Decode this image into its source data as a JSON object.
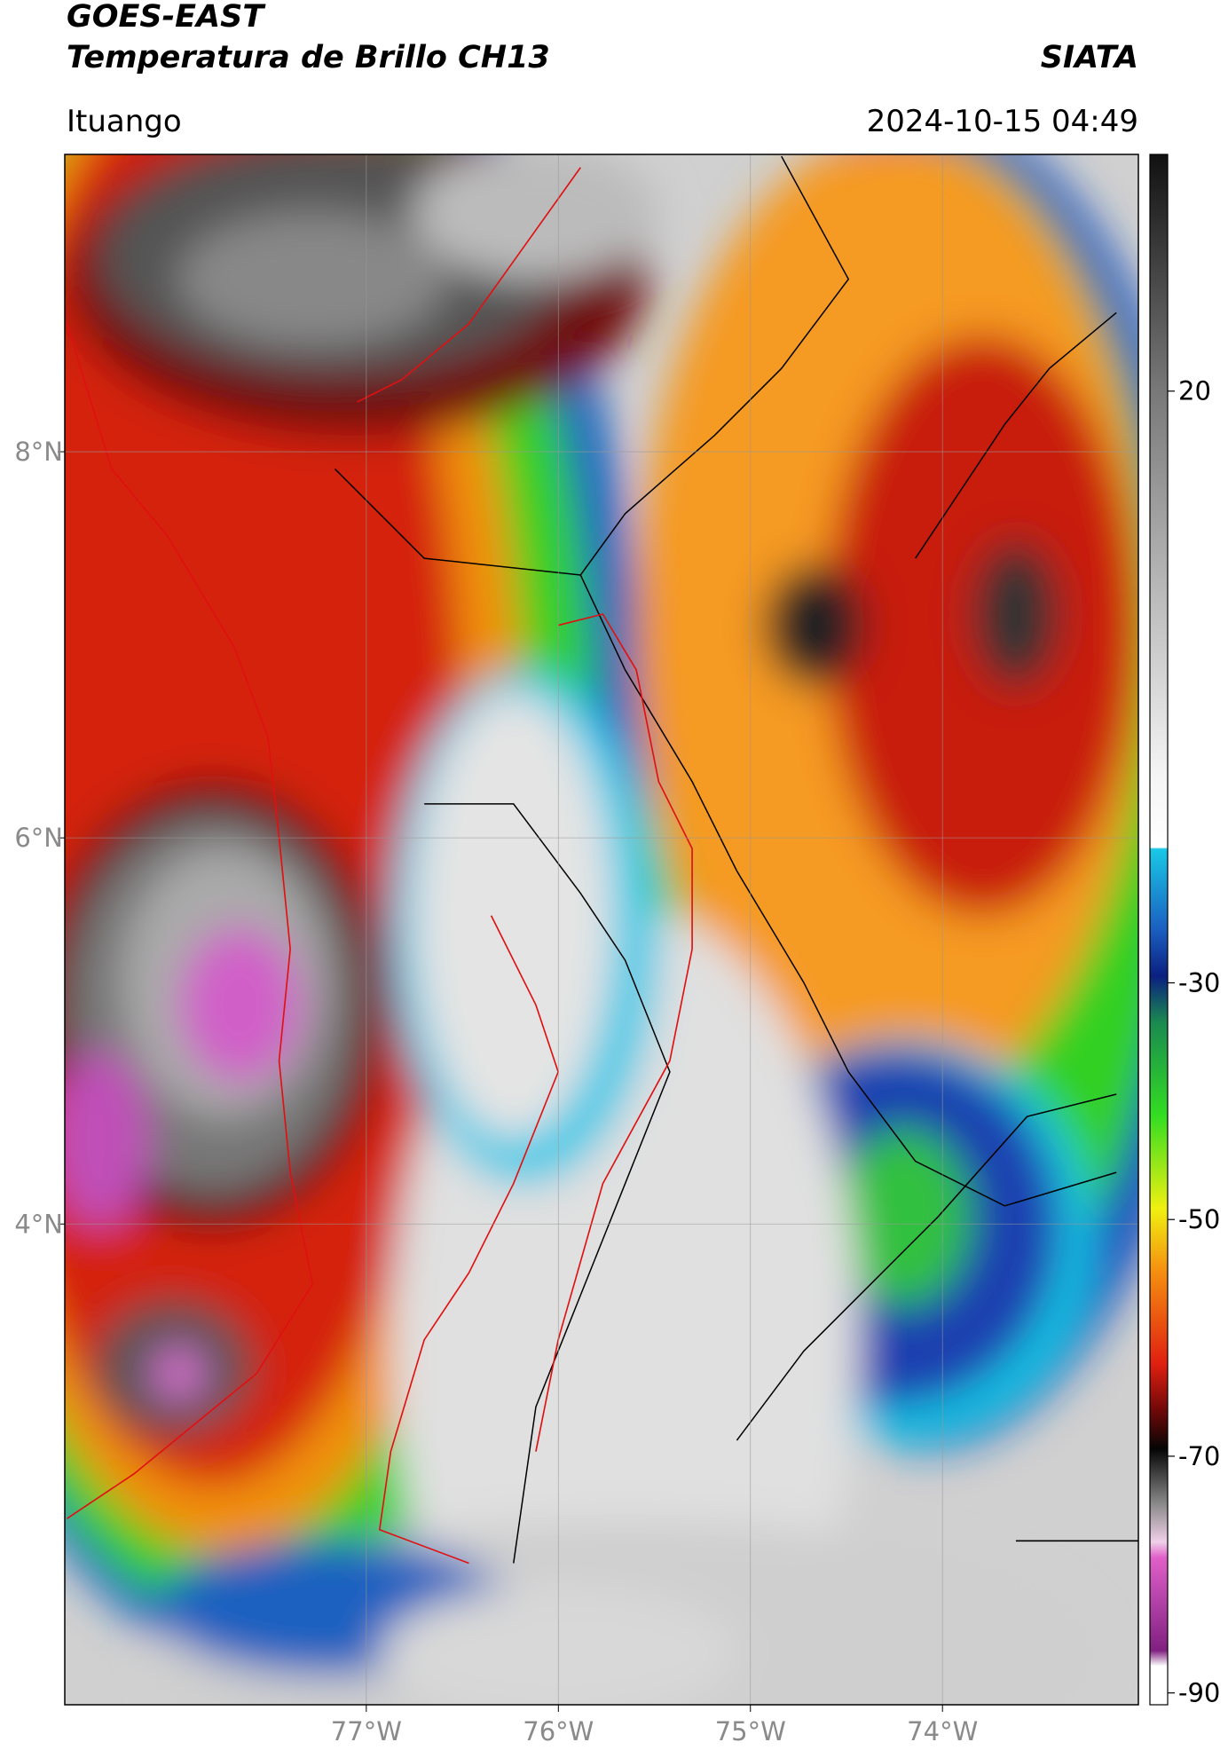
{
  "header": {
    "title": "GOES-EAST",
    "subtitle": "Temperatura de Brillo CH13",
    "source": "SIATA",
    "location": "Ituango",
    "datetime": "2024-10-15 04:49"
  },
  "map": {
    "xlim": [
      -78.57,
      -72.98
    ],
    "ylim": [
      1.51,
      9.54
    ],
    "xticks": [
      {
        "value": -77,
        "label": "77°W"
      },
      {
        "value": -76,
        "label": "76°W"
      },
      {
        "value": -75,
        "label": "75°W"
      },
      {
        "value": -74,
        "label": "74°W"
      }
    ],
    "yticks": [
      {
        "value": 8,
        "label": "8°N"
      },
      {
        "value": 6,
        "label": "6°N"
      },
      {
        "value": 4,
        "label": "4°N"
      }
    ],
    "grid": true
  },
  "colorbar": {
    "lim": [
      -91,
      40
    ],
    "ticks": [
      20,
      -30,
      -50,
      -70,
      -90
    ]
  }
}
